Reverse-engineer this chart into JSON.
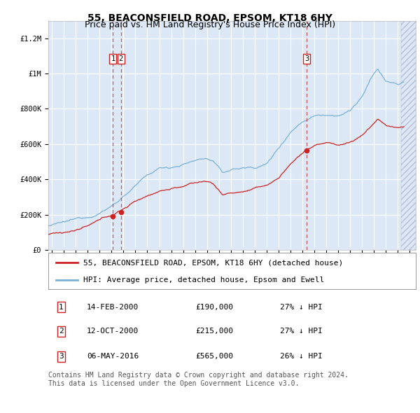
{
  "title": "55, BEACONSFIELD ROAD, EPSOM, KT18 6HY",
  "subtitle": "Price paid vs. HM Land Registry's House Price Index (HPI)",
  "ylim": [
    0,
    1300000
  ],
  "xlim_start": 1994.7,
  "xlim_end": 2025.5,
  "yticks": [
    0,
    200000,
    400000,
    600000,
    800000,
    1000000,
    1200000
  ],
  "ytick_labels": [
    "£0",
    "£200K",
    "£400K",
    "£600K",
    "£800K",
    "£1M",
    "£1.2M"
  ],
  "background_color": "#dce8f5",
  "hatch_region_start": 2024.25,
  "hatch_region_end": 2025.5,
  "hpi_color": "#7ab0d8",
  "price_color": "#cc2222",
  "grid_color": "#ffffff",
  "dashed_line_color": "#dd3333",
  "legend_label_price": "55, BEACONSFIELD ROAD, EPSOM, KT18 6HY (detached house)",
  "legend_label_hpi": "HPI: Average price, detached house, Epsom and Ewell",
  "transactions": [
    {
      "num": 1,
      "date": 2000.12,
      "price": 190000,
      "label": "1",
      "date_str": "14-FEB-2000",
      "price_str": "£190,000",
      "pct_str": "27% ↓ HPI"
    },
    {
      "num": 2,
      "date": 2000.79,
      "price": 215000,
      "label": "2",
      "date_str": "12-OCT-2000",
      "price_str": "£215,000",
      "pct_str": "27% ↓ HPI"
    },
    {
      "num": 3,
      "date": 2016.35,
      "price": 565000,
      "label": "3",
      "date_str": "06-MAY-2016",
      "price_str": "£565,000",
      "pct_str": "26% ↓ HPI"
    }
  ],
  "footnote": "Contains HM Land Registry data © Crown copyright and database right 2024.\nThis data is licensed under the Open Government Licence v3.0.",
  "title_fontsize": 10,
  "subtitle_fontsize": 9,
  "tick_fontsize": 7.5,
  "legend_fontsize": 8,
  "table_fontsize": 8,
  "footnote_fontsize": 7
}
